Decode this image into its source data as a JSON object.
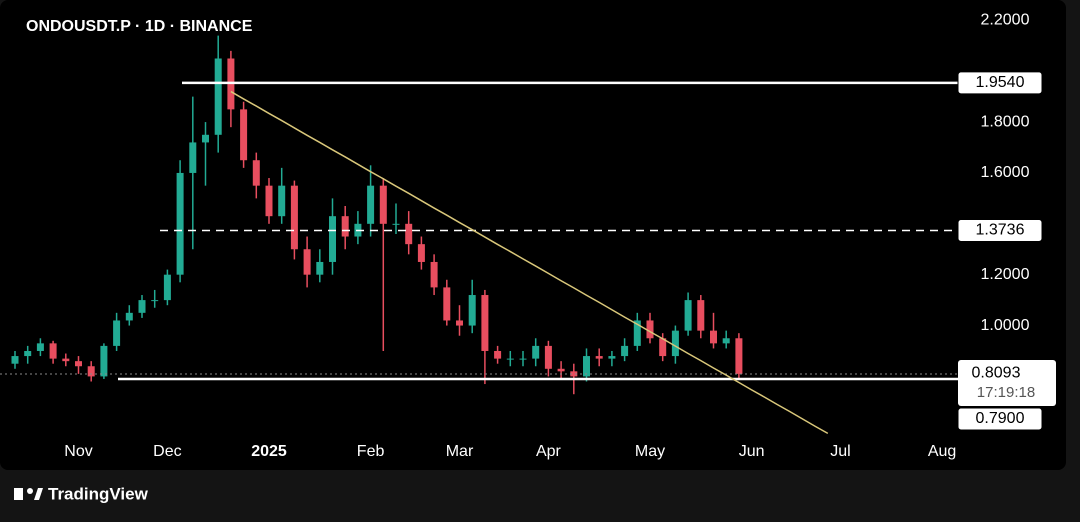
{
  "chart_data": {
    "type": "candlestick",
    "title": "ONDOUSDT.P · 1D · BINANCE",
    "brand": "TradingView",
    "categories": [
      null,
      null,
      null,
      null,
      null,
      "Nov",
      null,
      null,
      null,
      null,
      null,
      null,
      "Dec",
      null,
      null,
      null,
      null,
      null,
      null,
      null,
      "2025",
      null,
      null,
      null,
      null,
      null,
      null,
      null,
      "Feb",
      null,
      null,
      null,
      null,
      null,
      null,
      "Mar",
      null,
      null,
      null,
      null,
      null,
      null,
      "Apr",
      null,
      null,
      null,
      null,
      null,
      null,
      null,
      "May",
      null,
      null,
      null,
      null,
      null,
      null,
      null,
      "Jun",
      null,
      null,
      null,
      null,
      null,
      null,
      "Jul",
      null,
      null,
      null,
      null,
      null,
      null,
      null,
      "Aug",
      null,
      null
    ],
    "open": [
      0.85,
      0.88,
      0.9,
      0.93,
      0.87,
      0.86,
      0.84,
      0.8,
      0.92,
      1.02,
      1.05,
      1.1,
      1.1,
      1.2,
      1.6,
      1.72,
      1.75,
      2.05,
      1.85,
      1.65,
      1.55,
      1.43,
      1.55,
      1.3,
      1.2,
      1.25,
      1.43,
      1.35,
      1.4,
      1.55,
      1.4,
      1.4,
      1.32,
      1.25,
      1.15,
      1.02,
      1.0,
      1.12,
      0.9,
      0.87,
      0.87,
      0.87,
      0.92,
      0.83,
      0.82,
      0.8,
      0.88,
      0.87,
      0.88,
      0.92,
      1.02,
      0.95,
      0.88,
      0.98,
      1.1,
      0.98,
      0.93,
      0.95,
      null,
      null,
      null,
      null,
      null,
      null,
      null,
      null,
      null,
      null,
      null,
      null,
      null,
      null,
      null,
      null,
      null,
      null
    ],
    "high": [
      0.9,
      0.92,
      0.95,
      0.94,
      0.89,
      0.88,
      0.86,
      0.93,
      1.05,
      1.08,
      1.12,
      1.14,
      1.22,
      1.65,
      1.9,
      1.8,
      2.14,
      2.08,
      1.88,
      1.68,
      1.58,
      1.62,
      1.57,
      1.35,
      1.3,
      1.5,
      1.47,
      1.45,
      1.63,
      1.58,
      1.48,
      1.45,
      1.35,
      1.28,
      1.18,
      1.08,
      1.18,
      1.14,
      0.92,
      0.9,
      0.9,
      0.95,
      0.94,
      0.86,
      0.85,
      0.91,
      0.91,
      0.9,
      0.95,
      1.05,
      1.05,
      0.97,
      1.0,
      1.13,
      1.12,
      1.05,
      0.98,
      0.97,
      null,
      null,
      null,
      null,
      null,
      null,
      null,
      null,
      null,
      null,
      null,
      null,
      null,
      null,
      null,
      null,
      null,
      null
    ],
    "low": [
      0.83,
      0.85,
      0.88,
      0.85,
      0.84,
      0.81,
      0.78,
      0.79,
      0.9,
      1.0,
      1.03,
      1.07,
      1.08,
      1.17,
      1.3,
      1.55,
      1.68,
      1.78,
      1.62,
      1.5,
      1.4,
      1.4,
      1.26,
      1.15,
      1.17,
      1.2,
      1.3,
      1.32,
      1.35,
      0.9,
      1.36,
      1.28,
      1.22,
      1.12,
      1.0,
      0.96,
      0.97,
      0.77,
      0.85,
      0.84,
      0.84,
      0.84,
      0.8,
      0.79,
      0.73,
      0.78,
      0.84,
      0.84,
      0.86,
      0.9,
      0.93,
      0.86,
      0.85,
      0.96,
      0.95,
      0.91,
      0.91,
      0.79,
      null,
      null,
      null,
      null,
      null,
      null,
      null,
      null,
      null,
      null,
      null,
      null,
      null,
      null,
      null,
      null,
      null,
      null
    ],
    "close": [
      0.88,
      0.9,
      0.93,
      0.87,
      0.86,
      0.84,
      0.8,
      0.92,
      1.02,
      1.05,
      1.1,
      1.1,
      1.2,
      1.6,
      1.72,
      1.75,
      2.05,
      1.85,
      1.65,
      1.55,
      1.43,
      1.55,
      1.3,
      1.2,
      1.25,
      1.43,
      1.35,
      1.4,
      1.55,
      1.4,
      1.4,
      1.32,
      1.25,
      1.15,
      1.02,
      1.0,
      1.12,
      0.9,
      0.87,
      0.87,
      0.87,
      0.92,
      0.83,
      0.82,
      0.8,
      0.88,
      0.87,
      0.88,
      0.92,
      1.02,
      0.95,
      0.88,
      0.98,
      1.1,
      0.98,
      0.93,
      0.95,
      0.81,
      null,
      null,
      null,
      null,
      null,
      null,
      null,
      null,
      null,
      null,
      null,
      null,
      null,
      null,
      null,
      null,
      null,
      null
    ],
    "up_color": "#22ab94",
    "down_color": "#e84e5f",
    "trendline": {
      "color": "#d9c77a",
      "values": [
        null,
        null,
        null,
        null,
        null,
        null,
        null,
        null,
        null,
        null,
        null,
        null,
        null,
        null,
        null,
        null,
        null,
        1.92,
        1.891,
        1.863,
        1.834,
        1.806,
        1.777,
        1.748,
        1.72,
        1.691,
        1.663,
        1.634,
        1.605,
        1.577,
        1.548,
        1.52,
        1.491,
        1.462,
        1.434,
        1.405,
        1.377,
        1.348,
        1.319,
        1.291,
        1.262,
        1.234,
        1.205,
        1.176,
        1.148,
        1.119,
        1.091,
        1.062,
        1.033,
        1.005,
        0.976,
        0.948,
        0.919,
        0.89,
        0.862,
        0.833,
        0.805,
        0.776,
        0.747,
        0.719,
        0.69,
        0.662,
        0.633,
        0.604,
        0.576,
        null,
        null,
        null,
        null,
        null,
        null,
        null,
        null,
        null,
        null,
        null
      ]
    },
    "levels": [
      {
        "value": 1.954,
        "label": "1.9540",
        "style": "solid"
      },
      {
        "value": 1.3736,
        "label": "1.3736",
        "style": "dashed"
      },
      {
        "value": 0.79,
        "label": "0.7900",
        "style": "solid"
      }
    ],
    "last_price": {
      "value": 0.8093,
      "label": "0.8093",
      "countdown": "17:19:18"
    },
    "ylim": [
      0.55,
      2.28
    ],
    "yticks": [
      {
        "value": 1.0,
        "label": "1.0000"
      },
      {
        "value": 1.2,
        "label": "1.2000"
      },
      {
        "value": 1.6,
        "label": "1.6000"
      },
      {
        "value": 1.8,
        "label": "1.8000"
      },
      {
        "value": 2.2,
        "label": "2.2000"
      }
    ]
  }
}
